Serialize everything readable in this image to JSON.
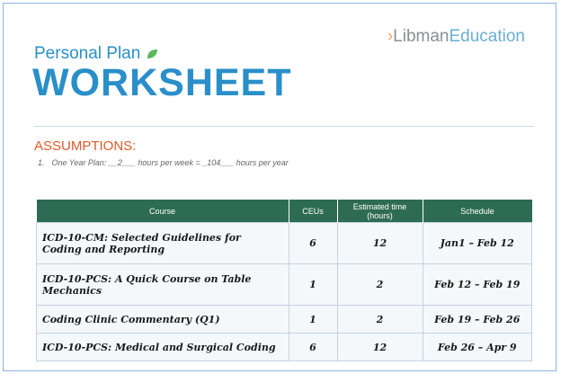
{
  "header": {
    "logo": {
      "mark": "›",
      "name": "Libman",
      "suffix": "Education"
    },
    "subtitle": "Personal Plan",
    "title": "WORKSHEET"
  },
  "assumptions": {
    "heading": "ASSUMPTIONS:",
    "items": [
      {
        "number": "1.",
        "text": "One Year Plan: __2___ hours per week = _104___ hours per year"
      }
    ]
  },
  "table": {
    "columns": [
      "Course",
      "CEUs",
      "Estimated time (hours)",
      "Schedule"
    ],
    "rows": [
      [
        "ICD-10-CM: Selected Guidelines for Coding and Reporting",
        "6",
        "12",
        "Jan1 – Feb 12"
      ],
      [
        "ICD-10-PCS: A Quick Course on Table Mechanics",
        "1",
        "2",
        "Feb 12 – Feb 19"
      ],
      [
        "Coding Clinic Commentary (Q1)",
        "1",
        "2",
        "Feb 19 – Feb 26"
      ],
      [
        "ICD-10-PCS: Medical and Surgical Coding",
        "6",
        "12",
        "Feb 26 – Apr 9"
      ]
    ]
  }
}
